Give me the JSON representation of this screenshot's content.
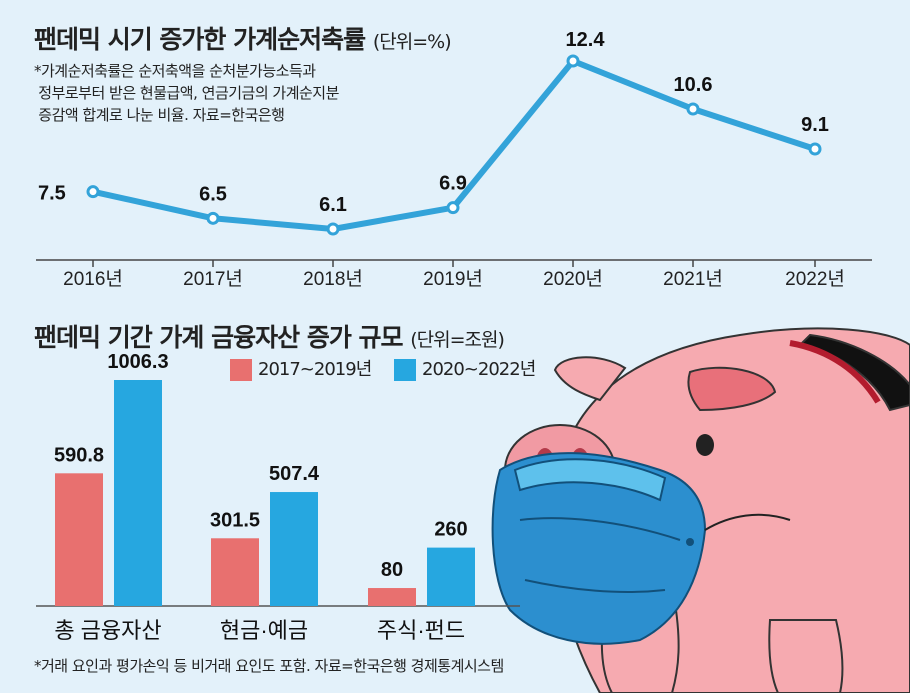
{
  "top_chart": {
    "title": "팬데믹 시기 증가한 가계순저축률",
    "unit": "(단위=%)",
    "note_lines": [
      "*가계순저축률은 순저축액을 순처분가능소득과",
      " 정부로부터 받은 현물급액, 연금기금의 가계순지분",
      " 증감액 합계로 나눈 비율. 자료=한국은행"
    ]
  },
  "bottom_chart": {
    "title": "팬데믹 기간 가계 금융자산 증가 규모",
    "unit": "(단위=조원)",
    "footnote": "*거래 요인과 평가손익 등 비거래 요인도 포함. 자료=한국은행 경제통계시스템"
  },
  "colors": {
    "line": "#33a3d9",
    "bar_a": "#e8706f",
    "bar_b": "#26a7e0",
    "background": "#e3f1fa"
  },
  "chart_data": [
    {
      "type": "line",
      "title": "팬데믹 시기 증가한 가계순저축률",
      "unit": "(단위=%)",
      "categories": [
        "2016년",
        "2017년",
        "2018년",
        "2019년",
        "2020년",
        "2021년",
        "2022년"
      ],
      "values": [
        7.5,
        6.5,
        6.1,
        6.9,
        12.4,
        10.6,
        9.1
      ],
      "labels": [
        "7.5",
        "6.5",
        "6.1",
        "6.9",
        "12.4",
        "10.6",
        "9.1"
      ],
      "grid": false
    },
    {
      "type": "bar",
      "title": "팬데믹 기간 가계 금융자산 증가 규모",
      "unit": "(단위=조원)",
      "categories": [
        "총 금융자산",
        "현금·예금",
        "주식·펀드"
      ],
      "legend_position": "top",
      "series": [
        {
          "name": "2017~2019년",
          "values": [
            590.8,
            301.5,
            80
          ],
          "labels": [
            "590.8",
            "301.5",
            "80"
          ]
        },
        {
          "name": "2020~2022년",
          "values": [
            1006.3,
            507.4,
            260
          ],
          "labels": [
            "1006.3",
            "507.4",
            "260"
          ]
        }
      ],
      "grid": false
    }
  ]
}
